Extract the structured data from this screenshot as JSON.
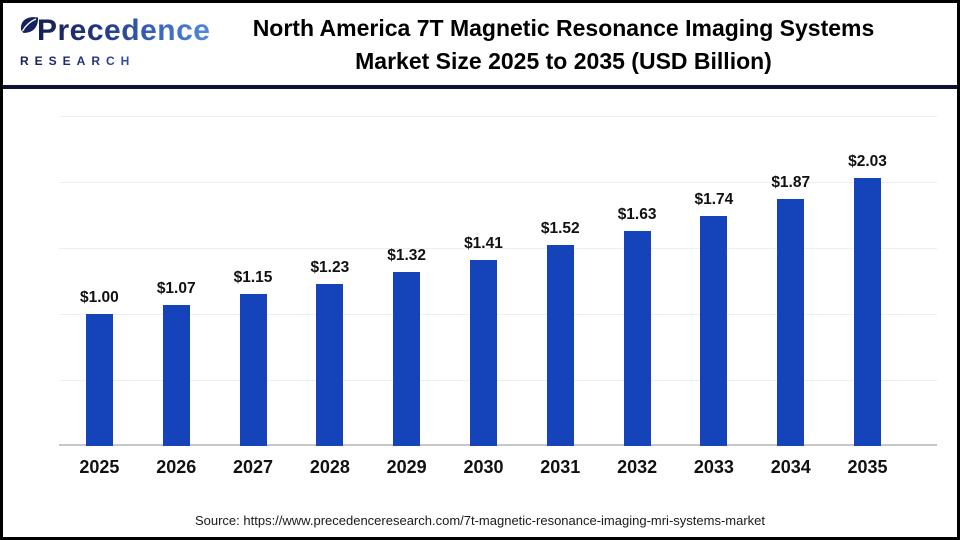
{
  "header": {
    "logo": {
      "brand": "Precedence",
      "sub": "RESEARCH"
    },
    "title_line1": "North America 7T Magnetic Resonance Imaging Systems",
    "title_line2": "Market Size 2025 to 2035 (USD Billion)"
  },
  "chart_data": {
    "type": "bar",
    "title": "North America 7T Magnetic Resonance Imaging Systems Market Size 2025 to 2035 (USD Billion)",
    "categories": [
      "2025",
      "2026",
      "2027",
      "2028",
      "2029",
      "2030",
      "2031",
      "2032",
      "2033",
      "2034",
      "2035"
    ],
    "values": [
      1.0,
      1.07,
      1.15,
      1.23,
      1.32,
      1.41,
      1.52,
      1.63,
      1.74,
      1.87,
      2.03
    ],
    "value_labels": [
      "$1.00",
      "$1.07",
      "$1.15",
      "$1.23",
      "$1.32",
      "$1.41",
      "$1.52",
      "$1.63",
      "$1.74",
      "$1.87",
      "$2.03"
    ],
    "xlabel": "",
    "ylabel": "",
    "unit": "USD Billion",
    "ylim": [
      0,
      2.6
    ],
    "gridline_values": [
      0.5,
      1.0,
      1.5,
      2.0,
      2.5
    ],
    "grid": "on",
    "legend": "none",
    "bar_color": "#1544ba",
    "axis_line_color": "#c7c7c7",
    "gridline_color": "#efeff2"
  },
  "footer": {
    "source": "Source: https://www.precedenceresearch.com/7t-magnetic-resonance-imaging-mri-systems-market"
  }
}
